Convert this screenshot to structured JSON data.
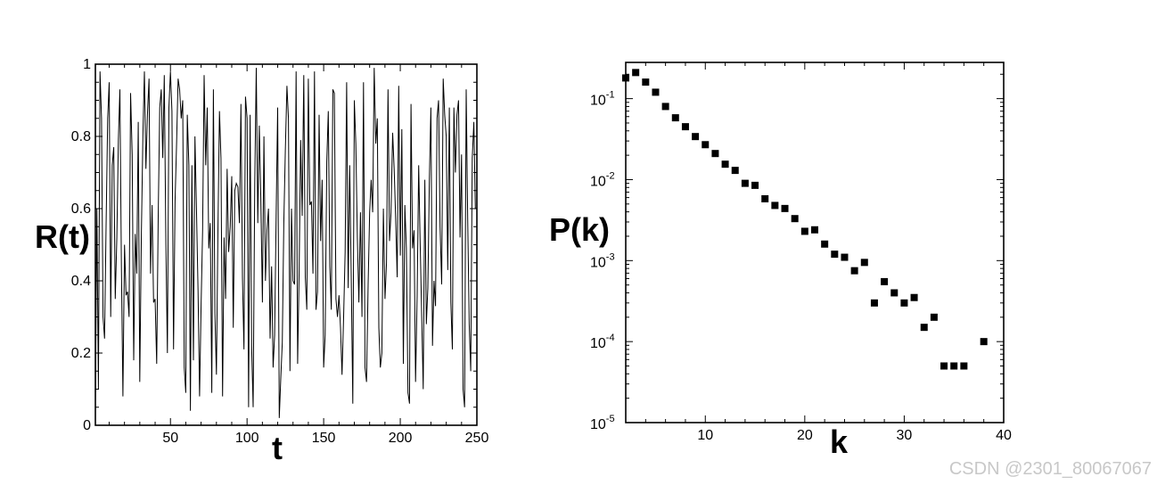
{
  "watermark": "CSDN @2301_80067067",
  "chart_data": [
    {
      "type": "line",
      "xlabel": "t",
      "ylabel": "R(t)",
      "xlim": [
        1,
        250
      ],
      "ylim": [
        0,
        1
      ],
      "xticks": [
        50,
        100,
        150,
        200,
        250
      ],
      "yticks": [
        0,
        0.2,
        0.4,
        0.6,
        0.8,
        1
      ],
      "ytick_labels": [
        "0",
        "0.2",
        "0.4",
        "0.6",
        "0.8",
        "1"
      ],
      "grid": false,
      "series": [
        {
          "x_start": 1,
          "x_step": 1,
          "values": [
            0.06,
            0.6,
            0.1,
            0.98,
            0.85,
            0.3,
            0.24,
            0.55,
            0.85,
            0.95,
            0.3,
            0.72,
            0.77,
            0.35,
            0.52,
            0.79,
            0.93,
            0.44,
            0.08,
            0.5,
            0.36,
            0.37,
            0.3,
            0.92,
            0.75,
            0.18,
            0.53,
            0.42,
            0.84,
            0.12,
            0.53,
            0.8,
            0.98,
            0.71,
            0.86,
            0.96,
            0.42,
            0.61,
            0.34,
            0.35,
            0.17,
            0.58,
            0.88,
            0.93,
            0.74,
            0.97,
            0.5,
            0.2,
            0.88,
            0.98,
            0.87,
            0.21,
            0.62,
            0.78,
            0.96,
            0.93,
            0.85,
            0.9,
            0.16,
            0.09,
            0.86,
            0.72,
            0.04,
            0.72,
            0.18,
            0.8,
            0.6,
            0.37,
            0.08,
            0.33,
            0.54,
            0.97,
            0.72,
            0.88,
            0.49,
            0.56,
            0.09,
            0.93,
            0.31,
            0.14,
            0.54,
            0.87,
            0.74,
            0.08,
            0.52,
            0.35,
            0.71,
            0.48,
            0.55,
            0.69,
            0.27,
            0.65,
            0.67,
            0.66,
            0.56,
            0.89,
            0.41,
            0.21,
            0.91,
            0.85,
            0.05,
            0.86,
            0.22,
            0.05,
            0.67,
            0.99,
            0.56,
            0.83,
            0.63,
            0.34,
            0.8,
            0.4,
            0.54,
            0.6,
            0.24,
            0.44,
            0.16,
            0.25,
            0.58,
            0.88,
            0.02,
            0.13,
            0.23,
            0.56,
            0.76,
            0.94,
            0.85,
            0.15,
            0.6,
            0.4,
            0.39,
            0.98,
            0.17,
            0.43,
            0.79,
            0.58,
            0.97,
            0.41,
            0.32,
            0.96,
            0.61,
            0.62,
            0.42,
            0.98,
            0.32,
            0.37,
            0.86,
            0.51,
            0.68,
            0.16,
            0.25,
            0.73,
            0.87,
            0.44,
            0.32,
            0.93,
            0.92,
            0.35,
            0.3,
            0.36,
            0.27,
            0.14,
            0.3,
            0.48,
            0.95,
            0.38,
            0.72,
            0.4,
            0.06,
            0.9,
            0.78,
            0.52,
            0.34,
            0.59,
            0.3,
            0.95,
            0.16,
            0.12,
            0.39,
            0.59,
            0.68,
            0.59,
            0.99,
            0.78,
            0.85,
            0.27,
            0.16,
            0.2,
            0.6,
            0.35,
            0.45,
            0.93,
            0.51,
            0.59,
            0.81,
            0.71,
            0.57,
            0.41,
            0.94,
            0.47,
            0.82,
            0.17,
            0.61,
            0.49,
            0.09,
            0.06,
            0.89,
            0.49,
            0.54,
            0.12,
            0.36,
            0.72,
            0.5,
            0.3,
            0.1,
            0.68,
            0.28,
            0.38,
            0.68,
            0.88,
            0.22,
            0.4,
            0.33,
            0.85,
            0.9,
            0.55,
            0.39,
            0.96,
            0.86,
            0.8,
            0.43,
            0.88,
            0.34,
            0.21,
            0.88,
            0.7,
            0.86,
            0.9,
            0.52,
            0.75,
            0.1,
            0.05,
            0.93,
            0.57,
            0.28,
            0.15,
            0.74,
            0.84,
            0.6
          ]
        }
      ]
    },
    {
      "type": "scatter",
      "xlabel": "k",
      "ylabel": "P(k)",
      "xlim": [
        2,
        40
      ],
      "ylim": [
        1e-05,
        0.28
      ],
      "yscale": "log",
      "xticks": [
        10,
        20,
        30,
        40
      ],
      "ytick_exponents": [
        -1,
        -2,
        -3,
        -4,
        -5
      ],
      "ytick_base": "10",
      "grid": false,
      "marker": "square",
      "series": [
        {
          "x": [
            2,
            3,
            4,
            5,
            6,
            7,
            8,
            9,
            10,
            11,
            12,
            13,
            14,
            15,
            16,
            17,
            18,
            19,
            20,
            21,
            22,
            23,
            24,
            25,
            26,
            27,
            28,
            29,
            30,
            31,
            32,
            33,
            34,
            35,
            36,
            38
          ],
          "y": [
            0.18,
            0.21,
            0.16,
            0.12,
            0.08,
            0.058,
            0.045,
            0.034,
            0.027,
            0.021,
            0.0155,
            0.013,
            0.009,
            0.0085,
            0.0058,
            0.0048,
            0.0044,
            0.0033,
            0.0023,
            0.0024,
            0.0016,
            0.0012,
            0.0011,
            0.00075,
            0.00095,
            0.0003,
            0.00055,
            0.0004,
            0.0003,
            0.00035,
            0.00015,
            0.0002,
            5e-05,
            5e-05,
            5e-05,
            0.0001
          ]
        }
      ]
    }
  ]
}
